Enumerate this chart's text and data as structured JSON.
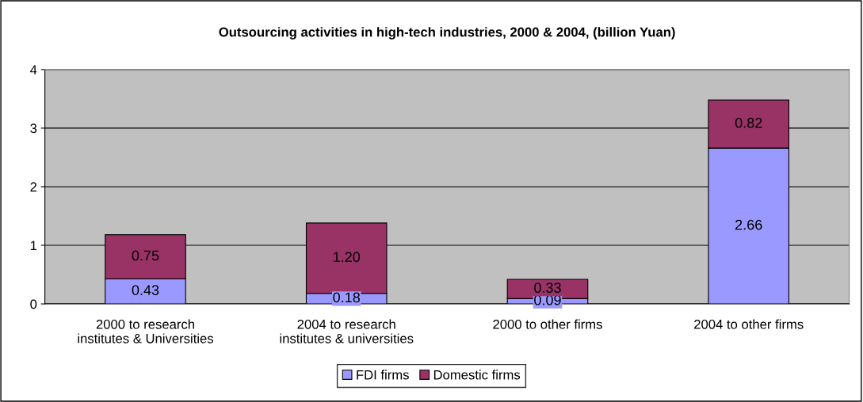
{
  "chart_data": {
    "type": "bar",
    "title": "Outsourcing activities in high-tech industries, 2000 & 2004, (billion Yuan)",
    "categories": [
      "2000 to research\ninstitutes & Universities",
      "2004 to research\ninstitutes & universities",
      "2000 to other firms",
      "2004 to other firms"
    ],
    "stacked": true,
    "series": [
      {
        "name": "FDI firms",
        "color": "#9999ff",
        "values": [
          0.43,
          0.18,
          0.09,
          2.66
        ],
        "value_labels": [
          "0.43",
          "0.18",
          "0.09",
          "2.66"
        ]
      },
      {
        "name": "Domestic firms",
        "color": "#993366",
        "values": [
          0.75,
          1.2,
          0.33,
          0.82
        ],
        "value_labels": [
          "0.75",
          "1.20",
          "0.33",
          "0.82"
        ]
      }
    ],
    "ylim": [
      0,
      4
    ],
    "yticks": [
      0,
      1,
      2,
      3,
      4
    ],
    "grid": "y",
    "legend": "bottom"
  }
}
